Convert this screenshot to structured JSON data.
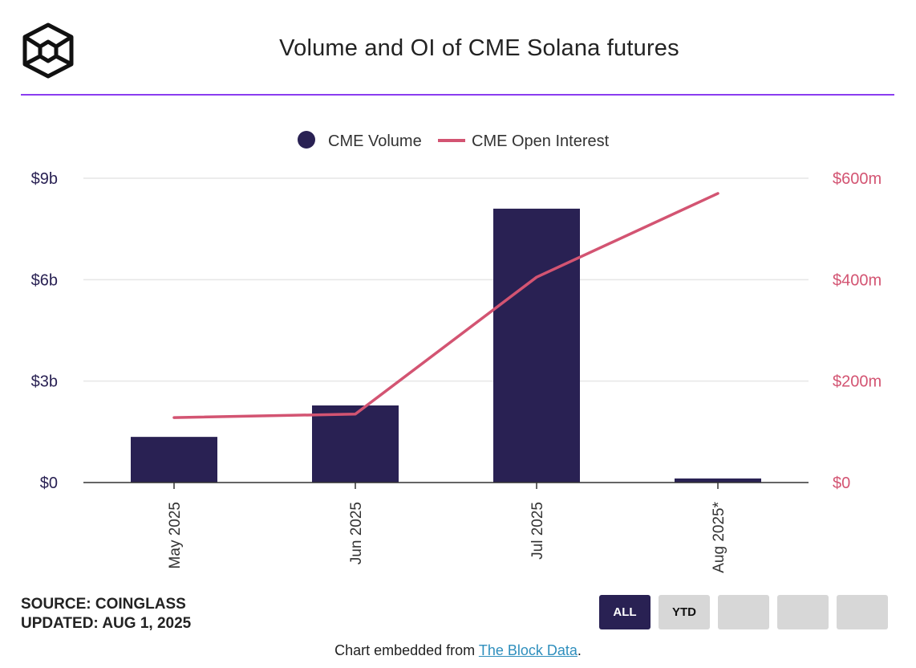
{
  "header": {
    "title": "Volume and OI of CME Solana futures",
    "logo_icon": "the-block-cube-logo-icon"
  },
  "colors": {
    "accent_rule": "#8a3df0",
    "volume_bar": "#292153",
    "open_interest_line": "#d35472",
    "grid": "#e6e6e6"
  },
  "chart_data": {
    "type": "bar",
    "title": "Volume and OI of CME Solana futures",
    "categories": [
      "May 2025",
      "Jun 2025",
      "Jul 2025",
      "Aug 2025*"
    ],
    "series": [
      {
        "name": "CME Volume",
        "type": "bar",
        "axis": "left",
        "values": [
          1.35,
          2.28,
          8.1,
          0.12
        ],
        "unit": "b"
      },
      {
        "name": "CME Open Interest",
        "type": "line",
        "axis": "right",
        "values": [
          128,
          135,
          405,
          570
        ],
        "unit": "m"
      }
    ],
    "left_axis": {
      "ylim": [
        0,
        9
      ],
      "ticks": [
        0,
        3,
        6,
        9
      ],
      "tick_labels": [
        "$0",
        "$3b",
        "$6b",
        "$9b"
      ]
    },
    "right_axis": {
      "ylim": [
        0,
        600
      ],
      "ticks": [
        0,
        200,
        400,
        600
      ],
      "tick_labels": [
        "$0",
        "$200m",
        "$400m",
        "$600m"
      ]
    },
    "legend": [
      "CME Volume",
      "CME Open Interest"
    ],
    "legend_position": "top-center",
    "grid": true
  },
  "footer": {
    "source": "SOURCE: COINGLASS",
    "updated": "UPDATED: AUG 1, 2025",
    "embed_prefix": "Chart embedded from ",
    "embed_link": "The Block Data",
    "embed_suffix": "."
  },
  "range_buttons": [
    {
      "label": "ALL",
      "active": true
    },
    {
      "label": "YTD",
      "active": false
    },
    {
      "label": "",
      "active": false
    },
    {
      "label": "",
      "active": false
    },
    {
      "label": "",
      "active": false
    }
  ]
}
